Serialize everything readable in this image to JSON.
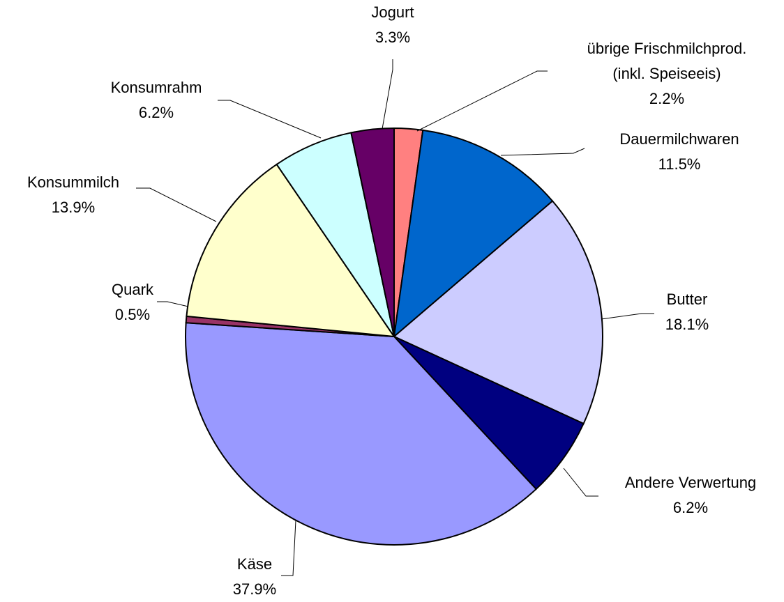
{
  "chart_data": {
    "type": "pie",
    "categories": [
      "übrige Frischmilchprod. (inkl. Speiseeis)",
      "Dauermilchwaren",
      "Butter",
      "Andere Verwertung",
      "Käse",
      "Quark",
      "Konsummilch",
      "Konsumrahm",
      "Jogurt"
    ],
    "values": [
      2.2,
      11.5,
      18.1,
      6.2,
      37.9,
      0.5,
      13.9,
      6.2,
      3.3
    ],
    "value_labels": [
      "2.2%",
      "11.5%",
      "18.1%",
      "6.2%",
      "37.9%",
      "0.5%",
      "13.9%",
      "6.2%",
      "3.3%"
    ],
    "colors": [
      "#ff8080",
      "#0066cc",
      "#ccccff",
      "#000080",
      "#9999ff",
      "#993366",
      "#ffffcc",
      "#ccffff",
      "#660066"
    ]
  }
}
